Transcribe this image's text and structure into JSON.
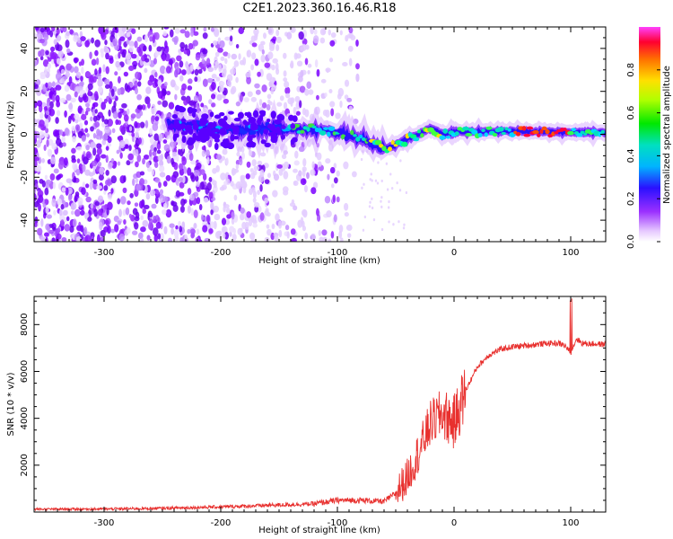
{
  "title": "C2E1.2023.360.16.46.R18",
  "chart_data": [
    {
      "type": "heatmap",
      "xlabel": "Height of straight line (km)",
      "ylabel": "Frequency (Hz)",
      "xlim": [
        -360,
        130
      ],
      "ylim": [
        -50,
        50
      ],
      "x_ticks": [
        -300,
        -200,
        -100,
        0,
        100
      ],
      "y_ticks": [
        -40,
        -20,
        0,
        20,
        40
      ],
      "colorbar": {
        "label": "Normalized spectral amplitude",
        "range": [
          0,
          1
        ],
        "ticks": [
          "0.0",
          "0.2",
          "0.4",
          "0.6",
          "0.8"
        ]
      },
      "ridge": {
        "x": [
          -240,
          -200,
          -150,
          -120,
          -100,
          -80,
          -60,
          -50,
          -40,
          -30,
          -20,
          -10,
          0,
          50,
          100,
          130
        ],
        "y": [
          5,
          2,
          3,
          2,
          1,
          -2,
          -7,
          -5,
          -2,
          0,
          3,
          0,
          1,
          1.5,
          1,
          1
        ]
      },
      "noise_extent_x": [
        -360,
        -80
      ],
      "grid": false
    },
    {
      "type": "line",
      "xlabel": "Height of straight line (km)",
      "ylabel": "SNR (10 * v/v)",
      "xlim": [
        -360,
        130
      ],
      "ylim": [
        0,
        9200
      ],
      "x_ticks": [
        -300,
        -200,
        -100,
        0,
        100
      ],
      "y_ticks": [
        2000,
        4000,
        6000,
        8000
      ],
      "color": "#e8302e",
      "grid": false,
      "series": [
        {
          "x": [
            -360,
            -300,
            -250,
            -200,
            -150,
            -120,
            -100,
            -80,
            -60,
            -50,
            -40,
            -30,
            -20,
            -10,
            0,
            10,
            20,
            30,
            40,
            50,
            60,
            70,
            80,
            90,
            95,
            100,
            105,
            110,
            130
          ],
          "y": [
            120,
            130,
            160,
            220,
            300,
            350,
            500,
            500,
            450,
            800,
            1500,
            2600,
            3800,
            4200,
            3800,
            5200,
            6200,
            6700,
            6950,
            7050,
            7100,
            7150,
            7200,
            7200,
            7100,
            6800,
            7400,
            7200,
            7150
          ]
        }
      ]
    }
  ]
}
